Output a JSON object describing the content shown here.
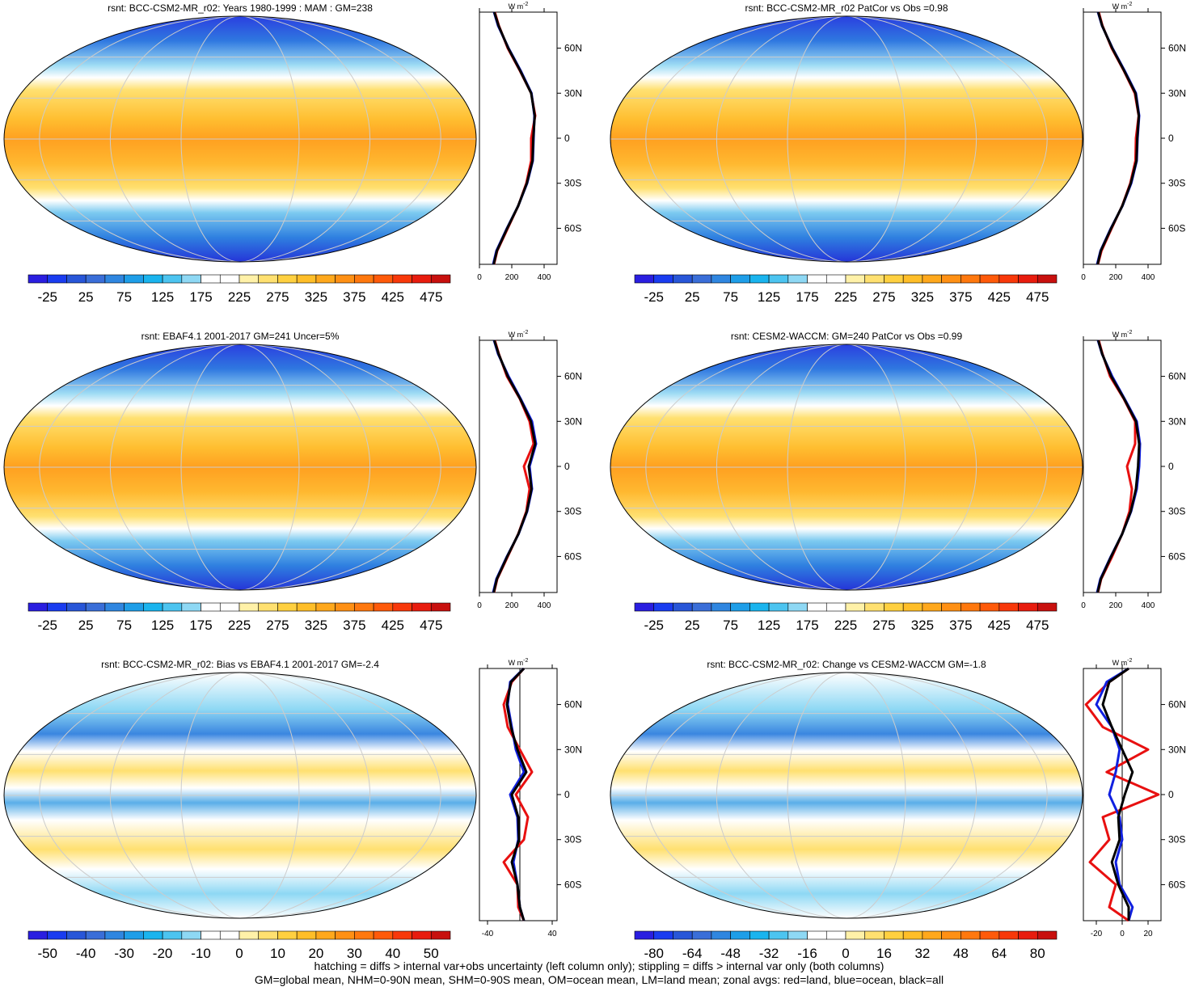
{
  "panels": [
    {
      "title": "rsnt: BCC-CSM2-MR_r02: Years 1980-1999 : MAM : GM=238",
      "map": "mean",
      "colorbar_labels": [
        "-25",
        "25",
        "75",
        "125",
        "175",
        "225",
        "275",
        "325",
        "375",
        "425",
        "475"
      ],
      "profile": {
        "unit": "W m",
        "unit_exp": "-2",
        "xlim": [
          0,
          480
        ],
        "xticks": [
          0,
          200,
          400
        ],
        "ylim": [
          -84,
          84
        ],
        "yticks": [
          {
            "value": 60,
            "label": "60N"
          },
          {
            "value": 30,
            "label": "30N"
          },
          0,
          {
            "value": -30,
            "label": "30S"
          },
          {
            "value": -60,
            "label": "60S"
          }
        ],
        "lat": [
          -84,
          -75,
          -60,
          -45,
          -30,
          -15,
          0,
          15,
          30,
          45,
          60,
          75,
          84
        ],
        "series": [
          {
            "name": "land",
            "color": "#e81010",
            "values": [
              90,
              110,
              175,
              240,
              290,
              320,
              320,
              345,
              320,
              250,
              175,
              120,
              95
            ]
          },
          {
            "name": "ocean",
            "color": "#1020e0",
            "values": [
              85,
              105,
              170,
              240,
              295,
              330,
              335,
              340,
              322,
              255,
              180,
              115,
              90
            ]
          },
          {
            "name": "all",
            "color": "#000000",
            "values": [
              88,
              108,
              172,
              240,
              293,
              328,
              333,
              342,
              320,
              252,
              178,
              118,
              92
            ]
          }
        ]
      }
    },
    {
      "title": "rsnt: BCC-CSM2-MR_r02 PatCor vs Obs =0.98",
      "map": "mean",
      "colorbar_labels": [
        "-25",
        "25",
        "75",
        "125",
        "175",
        "225",
        "275",
        "325",
        "375",
        "425",
        "475"
      ],
      "profile": {
        "unit": "W m",
        "unit_exp": "-2",
        "xlim": [
          0,
          480
        ],
        "xticks": [
          0,
          200,
          400
        ],
        "ylim": [
          -84,
          84
        ],
        "yticks": [
          {
            "value": 60,
            "label": "60N"
          },
          {
            "value": 30,
            "label": "30N"
          },
          0,
          {
            "value": -30,
            "label": "30S"
          },
          {
            "value": -60,
            "label": "60S"
          }
        ],
        "lat": [
          -84,
          -75,
          -60,
          -45,
          -30,
          -15,
          0,
          15,
          30,
          45,
          60,
          75,
          84
        ],
        "series": [
          {
            "name": "land",
            "color": "#e81010",
            "values": [
              90,
              112,
              175,
              240,
              290,
              322,
              325,
              342,
              318,
              250,
              175,
              118,
              95
            ]
          },
          {
            "name": "ocean",
            "color": "#1020e0",
            "values": [
              85,
              106,
              170,
              242,
              296,
              330,
              335,
              345,
              325,
              255,
              180,
              115,
              90
            ]
          },
          {
            "name": "all",
            "color": "#000000",
            "values": [
              88,
              108,
              172,
              241,
              293,
              328,
              333,
              343,
              322,
              252,
              178,
              116,
              92
            ]
          }
        ]
      }
    },
    {
      "title": "rsnt: EBAF4.1 2001-2017 GM=241 Uncer=5%",
      "map": "mean",
      "colorbar_labels": [
        "-25",
        "25",
        "75",
        "125",
        "175",
        "225",
        "275",
        "325",
        "375",
        "425",
        "475"
      ],
      "profile": {
        "unit": "W m",
        "unit_exp": "-2",
        "xlim": [
          0,
          480
        ],
        "xticks": [
          0,
          200,
          400
        ],
        "ylim": [
          -84,
          84
        ],
        "yticks": [
          {
            "value": 60,
            "label": "60N"
          },
          {
            "value": 30,
            "label": "30N"
          },
          0,
          {
            "value": -30,
            "label": "30S"
          },
          {
            "value": -60,
            "label": "60S"
          }
        ],
        "lat": [
          -84,
          -75,
          -60,
          -45,
          -30,
          -15,
          0,
          15,
          30,
          45,
          60,
          75,
          84
        ],
        "series": [
          {
            "name": "land",
            "color": "#e81010",
            "values": [
              90,
              110,
              175,
              240,
              290,
              310,
              275,
              335,
              310,
              250,
              170,
              120,
              95
            ]
          },
          {
            "name": "ocean",
            "color": "#1020e0",
            "values": [
              85,
              105,
              170,
              242,
              295,
              325,
              310,
              350,
              325,
              255,
              180,
              115,
              90
            ]
          },
          {
            "name": "all",
            "color": "#000000",
            "values": [
              88,
              108,
              172,
              241,
              293,
              322,
              305,
              345,
              318,
              252,
              175,
              118,
              92
            ]
          }
        ]
      }
    },
    {
      "title": "rsnt: CESM2-WACCM: GM=240 PatCor vs Obs =0.99",
      "map": "mean",
      "colorbar_labels": [
        "-25",
        "25",
        "75",
        "125",
        "175",
        "225",
        "275",
        "325",
        "375",
        "425",
        "475"
      ],
      "profile": {
        "unit": "W m",
        "unit_exp": "-2",
        "xlim": [
          0,
          480
        ],
        "xticks": [
          0,
          200,
          400
        ],
        "ylim": [
          -84,
          84
        ],
        "yticks": [
          {
            "value": 60,
            "label": "60N"
          },
          {
            "value": 30,
            "label": "30N"
          },
          0,
          {
            "value": -30,
            "label": "30S"
          },
          {
            "value": -60,
            "label": "60S"
          }
        ],
        "lat": [
          -84,
          -75,
          -60,
          -45,
          -30,
          -15,
          0,
          15,
          30,
          45,
          60,
          75,
          84
        ],
        "series": [
          {
            "name": "land",
            "color": "#e81010",
            "values": [
              90,
              110,
              178,
              240,
              285,
              300,
              270,
              320,
              320,
              250,
              165,
              118,
              95
            ]
          },
          {
            "name": "ocean",
            "color": "#1020e0",
            "values": [
              85,
              105,
              170,
              240,
              295,
              330,
              345,
              350,
              330,
              255,
              178,
              115,
              90
            ]
          },
          {
            "name": "all",
            "color": "#000000",
            "values": [
              88,
              108,
              172,
              240,
              293,
              325,
              338,
              345,
              325,
              252,
              172,
              116,
              92
            ]
          }
        ]
      }
    },
    {
      "title": "rsnt: BCC-CSM2-MR_r02: Bias vs EBAF4.1 2001-2017 GM=-2.4",
      "map": "diff",
      "colorbar_labels": [
        "-50",
        "-40",
        "-30",
        "-20",
        "-10",
        "0",
        "10",
        "20",
        "30",
        "40",
        "50"
      ],
      "profile": {
        "unit": "W m",
        "unit_exp": "-2",
        "xlim": [
          -50,
          46
        ],
        "xticks": [
          -40,
          40
        ],
        "ylim": [
          -84,
          84
        ],
        "yticks": [
          {
            "value": 60,
            "label": "60N"
          },
          {
            "value": 30,
            "label": "30N"
          },
          0,
          {
            "value": -30,
            "label": "30S"
          },
          {
            "value": -60,
            "label": "60S"
          }
        ],
        "lat": [
          -84,
          -75,
          -60,
          -45,
          -30,
          -15,
          0,
          15,
          30,
          45,
          60,
          75,
          84
        ],
        "series": [
          {
            "name": "land",
            "color": "#e81010",
            "values": [
              5,
              -2,
              -3,
              -20,
              5,
              10,
              -5,
              15,
              0,
              -15,
              -20,
              -10,
              5
            ]
          },
          {
            "name": "ocean",
            "color": "#1020e0",
            "values": [
              5,
              0,
              -3,
              -8,
              -2,
              -3,
              -12,
              5,
              -5,
              -10,
              -15,
              -12,
              5
            ]
          },
          {
            "name": "all",
            "color": "#000000",
            "values": [
              5,
              0,
              -3,
              -10,
              -1,
              -2,
              -10,
              8,
              -3,
              -11,
              -16,
              -11,
              5
            ]
          }
        ]
      }
    },
    {
      "title": "rsnt: BCC-CSM2-MR_r02: Change vs CESM2-WACCM GM=-1.8",
      "map": "diff",
      "colorbar_labels": [
        "-80",
        "-64",
        "-48",
        "-32",
        "-16",
        "0",
        "16",
        "32",
        "48",
        "64",
        "80"
      ],
      "profile": {
        "unit": "W m",
        "unit_exp": "-2",
        "xlim": [
          -30,
          30
        ],
        "xticks": [
          -20,
          0,
          20
        ],
        "ylim": [
          -84,
          84
        ],
        "yticks": [
          {
            "value": 60,
            "label": "60N"
          },
          {
            "value": 30,
            "label": "30N"
          },
          0,
          {
            "value": -30,
            "label": "30S"
          },
          {
            "value": -60,
            "label": "60S"
          }
        ],
        "lat": [
          -84,
          -75,
          -60,
          -45,
          -30,
          -15,
          0,
          15,
          30,
          45,
          60,
          75,
          84
        ],
        "series": [
          {
            "name": "land",
            "color": "#e81010",
            "values": [
              5,
              -10,
              -5,
              -25,
              -10,
              -15,
              28,
              -12,
              20,
              -15,
              -28,
              -10,
              5
            ]
          },
          {
            "name": "ocean",
            "color": "#1020e0",
            "values": [
              5,
              8,
              -2,
              -5,
              0,
              -2,
              -10,
              -5,
              -2,
              -8,
              -20,
              -12,
              5
            ]
          },
          {
            "name": "all",
            "color": "#000000",
            "values": [
              5,
              5,
              -3,
              -8,
              -2,
              -3,
              2,
              8,
              0,
              -8,
              -15,
              -10,
              5
            ]
          }
        ]
      }
    }
  ],
  "colorbar_colors": [
    "#2a1ee0",
    "#1a3cf0",
    "#2856d8",
    "#3a6ed8",
    "#2f86e0",
    "#1e9ee8",
    "#1ab4ee",
    "#4cc4f0",
    "#8ed8f4",
    "#ffffff",
    "#ffffff",
    "#fff1a8",
    "#ffe070",
    "#ffd040",
    "#ffbe28",
    "#ffa81c",
    "#ff9014",
    "#ff780e",
    "#ff5a0a",
    "#f8380a",
    "#e81c0e",
    "#c8100e"
  ],
  "footer": [
    "hatching = diffs > internal var+obs uncertainty (left column only); stippling = diffs > internal var only (both columns)",
    "GM=global mean, NHM=0-90N mean, SHM=0-90S mean, OM=ocean mean, LM=land mean; zonal avgs: red=land, blue=ocean, black=all"
  ]
}
